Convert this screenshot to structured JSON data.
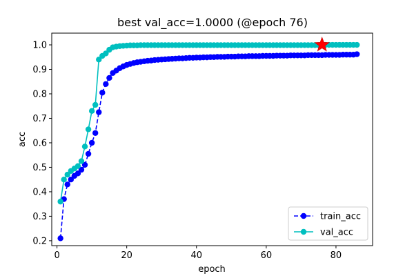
{
  "chart_data": {
    "type": "line",
    "title": "best val_acc=1.0000 (@epoch 76)",
    "xlabel": "epoch",
    "ylabel": "acc",
    "xlim": [
      -1.5,
      90.5
    ],
    "ylim": [
      0.18,
      1.048
    ],
    "xticks": [
      0,
      20,
      40,
      60,
      80
    ],
    "yticks": [
      0.2,
      0.3,
      0.4,
      0.5,
      0.6,
      0.7,
      0.8,
      0.9,
      1.0
    ],
    "ytick_labels": [
      "0.2",
      "0.3",
      "0.4",
      "0.5",
      "0.6",
      "0.7",
      "0.8",
      "0.9",
      "1.0"
    ],
    "grid": false,
    "legend_position": "lower-right",
    "series": [
      {
        "name": "train_acc",
        "color": "#0000ff",
        "linestyle": "dashed",
        "marker": "circle",
        "x": [
          1,
          2,
          3,
          4,
          5,
          6,
          7,
          8,
          9,
          10,
          11,
          12,
          13,
          14,
          15,
          16,
          17,
          18,
          19,
          20,
          21,
          22,
          23,
          24,
          25,
          26,
          27,
          28,
          29,
          30,
          31,
          32,
          33,
          34,
          35,
          36,
          37,
          38,
          39,
          40,
          41,
          42,
          43,
          44,
          45,
          46,
          47,
          48,
          49,
          50,
          51,
          52,
          53,
          54,
          55,
          56,
          57,
          58,
          59,
          60,
          61,
          62,
          63,
          64,
          65,
          66,
          67,
          68,
          69,
          70,
          71,
          72,
          73,
          74,
          75,
          76,
          77,
          78,
          79,
          80,
          81,
          82,
          83,
          84,
          85,
          86
        ],
        "y": [
          0.21,
          0.37,
          0.43,
          0.45,
          0.465,
          0.475,
          0.49,
          0.51,
          0.555,
          0.6,
          0.64,
          0.725,
          0.805,
          0.84,
          0.865,
          0.885,
          0.895,
          0.905,
          0.912,
          0.918,
          0.922,
          0.926,
          0.929,
          0.931,
          0.933,
          0.935,
          0.936,
          0.938,
          0.939,
          0.94,
          0.941,
          0.942,
          0.943,
          0.944,
          0.945,
          0.945,
          0.946,
          0.947,
          0.947,
          0.948,
          0.948,
          0.949,
          0.949,
          0.95,
          0.95,
          0.951,
          0.951,
          0.951,
          0.952,
          0.952,
          0.952,
          0.953,
          0.953,
          0.953,
          0.954,
          0.954,
          0.954,
          0.954,
          0.955,
          0.955,
          0.955,
          0.955,
          0.956,
          0.956,
          0.956,
          0.956,
          0.957,
          0.957,
          0.957,
          0.957,
          0.957,
          0.958,
          0.958,
          0.958,
          0.958,
          0.958,
          0.959,
          0.959,
          0.959,
          0.959,
          0.959,
          0.96,
          0.96,
          0.96,
          0.96,
          0.962
        ]
      },
      {
        "name": "val_acc",
        "color": "#00bfbf",
        "linestyle": "solid",
        "marker": "circle",
        "x": [
          1,
          2,
          3,
          4,
          5,
          6,
          7,
          8,
          9,
          10,
          11,
          12,
          13,
          14,
          15,
          16,
          17,
          18,
          19,
          20,
          21,
          22,
          23,
          24,
          25,
          26,
          27,
          28,
          29,
          30,
          31,
          32,
          33,
          34,
          35,
          36,
          37,
          38,
          39,
          40,
          41,
          42,
          43,
          44,
          45,
          46,
          47,
          48,
          49,
          50,
          51,
          52,
          53,
          54,
          55,
          56,
          57,
          58,
          59,
          60,
          61,
          62,
          63,
          64,
          65,
          66,
          67,
          68,
          69,
          70,
          71,
          72,
          73,
          74,
          75,
          76,
          77,
          78,
          79,
          80,
          81,
          82,
          83,
          84,
          85,
          86
        ],
        "y": [
          0.36,
          0.45,
          0.47,
          0.485,
          0.495,
          0.505,
          0.525,
          0.585,
          0.655,
          0.73,
          0.755,
          0.94,
          0.955,
          0.965,
          0.98,
          0.99,
          0.993,
          0.995,
          0.996,
          0.997,
          0.998,
          0.998,
          0.998,
          0.999,
          0.999,
          0.999,
          0.999,
          0.999,
          0.999,
          0.999,
          0.999,
          0.999,
          0.999,
          0.999,
          0.999,
          0.999,
          0.999,
          0.999,
          0.999,
          0.999,
          0.999,
          0.999,
          0.999,
          0.999,
          0.999,
          0.999,
          0.999,
          0.999,
          0.999,
          0.999,
          0.999,
          0.999,
          0.999,
          0.999,
          0.999,
          0.999,
          0.999,
          0.999,
          0.999,
          0.999,
          0.999,
          0.999,
          0.999,
          0.999,
          0.999,
          0.999,
          0.999,
          0.999,
          0.999,
          0.999,
          0.999,
          0.999,
          0.999,
          0.999,
          0.999,
          1.0,
          1.0,
          1.0,
          1.0,
          1.0,
          1.0,
          1.0,
          1.0,
          1.0,
          1.0,
          1.0
        ]
      }
    ],
    "highlight": {
      "marker": "star",
      "color": "#ff0000",
      "x": 76,
      "y": 1.0
    }
  }
}
